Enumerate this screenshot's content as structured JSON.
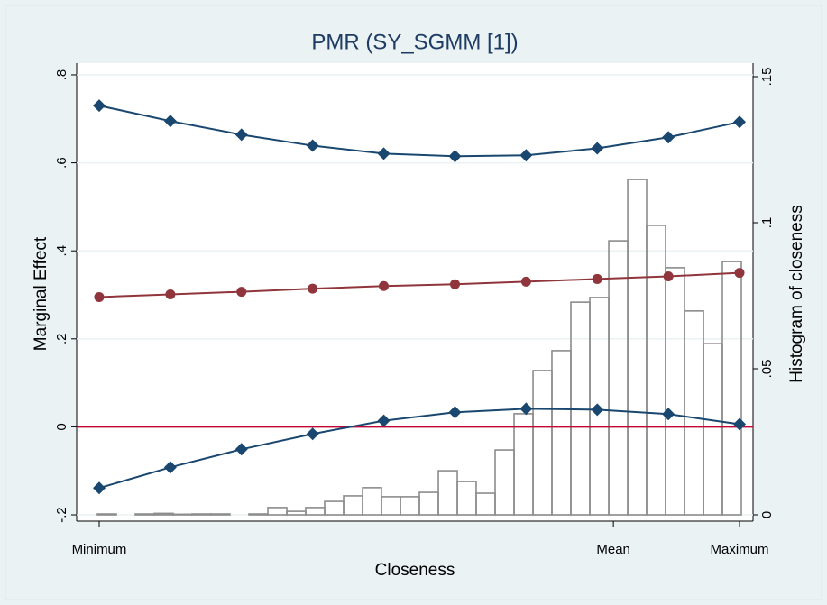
{
  "chart_data": {
    "type": "line",
    "title": "PMR (SY_SGMM [1])",
    "xlabel": "Closeness",
    "ylabel": "Marginal Effect",
    "y2label": "Histogram of closeness",
    "x": [
      0,
      0.1111,
      0.2222,
      0.3333,
      0.4444,
      0.5556,
      0.6667,
      0.7778,
      0.8889,
      1
    ],
    "xlim": [
      -0.0352,
      1.0211
    ],
    "xticks": [
      {
        "value": 0,
        "label": "Minimum"
      },
      {
        "value": 0.803,
        "label": "Mean"
      },
      {
        "value": 1,
        "label": "Maximum"
      }
    ],
    "ylim": [
      -0.2143,
      0.8266
    ],
    "yticks": [
      {
        "value": -0.2,
        "label": "-.2"
      },
      0,
      {
        "value": 0.2,
        "label": ".2"
      },
      {
        "value": 0.4,
        "label": ".4"
      },
      {
        "value": 0.6,
        "label": ".6"
      },
      {
        "value": 0.8,
        "label": ".8"
      }
    ],
    "y2lim": [
      -0.00216,
      0.15463
    ],
    "y2ticks": [
      0,
      {
        "value": 0.05,
        "label": ".05"
      },
      {
        "value": 0.1,
        "label": ".1"
      },
      {
        "value": 0.15,
        "label": ".15"
      }
    ],
    "grid": true,
    "yline": 0,
    "yline_color": "#c10534",
    "series": [
      {
        "color": "#1a476f",
        "marker": "diamond",
        "values": [
          0.73,
          0.695,
          0.664,
          0.639,
          0.621,
          0.615,
          0.617,
          0.633,
          0.658,
          0.693
        ]
      },
      {
        "color": "#90353b",
        "marker": "circle",
        "values": [
          0.295,
          0.301,
          0.307,
          0.314,
          0.32,
          0.324,
          0.33,
          0.336,
          0.342,
          0.35
        ]
      },
      {
        "color": "#1a476f",
        "marker": "diamond",
        "values": [
          -0.139,
          -0.092,
          -0.051,
          -0.016,
          0.014,
          0.033,
          0.041,
          0.039,
          0.029,
          0.006
        ]
      }
    ],
    "histogram": {
      "axis": "y2",
      "color": "#8c8c8c",
      "bins": [
        -0.0028,
        0.0268,
        0.0564,
        0.0859,
        0.1155,
        0.1451,
        0.1747,
        0.2042,
        0.2338,
        0.2634,
        0.293,
        0.3225,
        0.3521,
        0.3817,
        0.4113,
        0.4408,
        0.4704,
        0.5,
        0.5296,
        0.5592,
        0.5887,
        0.6183,
        0.6479,
        0.6775,
        0.707,
        0.7366,
        0.7662,
        0.7958,
        0.8254,
        0.8549,
        0.8845,
        0.9141,
        0.9437,
        0.9732,
        1.0028
      ],
      "values": [
        0.0003,
        0,
        0.0003,
        0.0005,
        0.0002,
        0.0003,
        0.0003,
        0,
        0.0003,
        0.0025,
        0.0012,
        0.0025,
        0.0046,
        0.0065,
        0.0093,
        0.0062,
        0.0062,
        0.0077,
        0.0151,
        0.0114,
        0.0074,
        0.0222,
        0.0346,
        0.0494,
        0.0562,
        0.0728,
        0.0744,
        0.0938,
        0.1148,
        0.0991,
        0.0846,
        0.0698,
        0.0586,
        0.0867
      ]
    }
  }
}
